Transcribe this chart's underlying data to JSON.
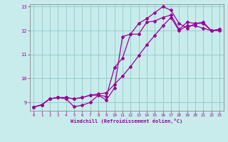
{
  "title": "",
  "xlabel": "Windchill (Refroidissement éolien,°C)",
  "ylabel": "",
  "bg_color": "#c8ecec",
  "line_color": "#990099",
  "grid_color": "#99cccc",
  "xlim": [
    -0.5,
    23.5
  ],
  "ylim": [
    8.65,
    13.1
  ],
  "yticks": [
    9,
    10,
    11,
    12,
    13
  ],
  "xticks": [
    0,
    1,
    2,
    3,
    4,
    5,
    6,
    7,
    8,
    9,
    10,
    11,
    12,
    13,
    14,
    15,
    16,
    17,
    18,
    19,
    20,
    21,
    22,
    23
  ],
  "line1_x": [
    0,
    1,
    2,
    3,
    4,
    5,
    6,
    7,
    8,
    9,
    10,
    11,
    12,
    13,
    14,
    15,
    16,
    17,
    18,
    19,
    20,
    21,
    22,
    23
  ],
  "line1_y": [
    8.8,
    8.9,
    9.15,
    9.2,
    9.2,
    9.15,
    9.2,
    9.3,
    9.35,
    9.4,
    9.75,
    10.1,
    10.5,
    10.95,
    11.4,
    11.8,
    12.2,
    12.55,
    12.0,
    12.2,
    12.2,
    12.1,
    12.0,
    12.05
  ],
  "line2_x": [
    0,
    1,
    2,
    3,
    4,
    5,
    6,
    7,
    8,
    9,
    10,
    11,
    12,
    13,
    14,
    15,
    16,
    17,
    18,
    19,
    20,
    21,
    22,
    23
  ],
  "line2_y": [
    8.8,
    8.9,
    9.15,
    9.2,
    9.15,
    8.82,
    8.88,
    9.0,
    9.3,
    9.1,
    9.6,
    11.75,
    11.85,
    11.85,
    12.35,
    12.4,
    12.55,
    12.65,
    12.05,
    12.35,
    12.3,
    12.35,
    12.0,
    12.05
  ],
  "line3_x": [
    0,
    1,
    2,
    3,
    4,
    5,
    6,
    7,
    8,
    9,
    10,
    11,
    12,
    13,
    14,
    15,
    16,
    17,
    18,
    19,
    20,
    21,
    22,
    23
  ],
  "line3_y": [
    8.8,
    8.9,
    9.15,
    9.2,
    9.2,
    9.15,
    9.2,
    9.3,
    9.3,
    9.25,
    10.45,
    10.85,
    11.85,
    12.3,
    12.5,
    12.75,
    13.0,
    12.85,
    12.3,
    12.1,
    12.3,
    12.3,
    12.0,
    12.0
  ]
}
